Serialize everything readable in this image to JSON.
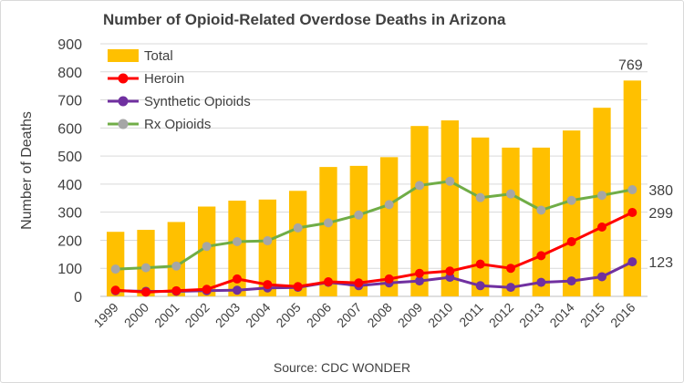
{
  "chart_data": {
    "type": "bar",
    "title": "Number of Opioid-Related Overdose Deaths in Arizona",
    "ylabel": "Number of Deaths",
    "xlabel": "",
    "source": "Source: CDC WONDER",
    "ylim": [
      0,
      900
    ],
    "yticks": [
      "0",
      "100",
      "200",
      "300",
      "400",
      "500",
      "600",
      "700",
      "800",
      "900"
    ],
    "grid": true,
    "legend_position": "top-left",
    "categories": [
      "1999",
      "2000",
      "2001",
      "2002",
      "2003",
      "2004",
      "2005",
      "2006",
      "2007",
      "2008",
      "2009",
      "2010",
      "2011",
      "2012",
      "2013",
      "2014",
      "2015",
      "2016"
    ],
    "bar_series": {
      "name": "Total",
      "color": "#FFC000",
      "values": [
        230,
        237,
        265,
        320,
        341,
        345,
        376,
        461,
        465,
        496,
        607,
        627,
        566,
        530,
        530,
        591,
        672,
        769
      ]
    },
    "line_series": [
      {
        "name": "Heroin",
        "color": "#FF0000",
        "values": [
          22,
          15,
          20,
          25,
          62,
          42,
          35,
          52,
          48,
          62,
          82,
          90,
          115,
          100,
          145,
          195,
          247,
          299
        ]
      },
      {
        "name": "Synthetic Opioids",
        "color": "#7030A0",
        "values": [
          20,
          18,
          18,
          20,
          22,
          30,
          32,
          50,
          38,
          48,
          55,
          68,
          38,
          32,
          50,
          55,
          70,
          123
        ]
      },
      {
        "name": "Rx Opioids",
        "color": "#70AD47",
        "marker_color": "#A6A6A6",
        "values": [
          97,
          102,
          108,
          178,
          195,
          198,
          244,
          262,
          290,
          327,
          395,
          410,
          352,
          365,
          307,
          342,
          360,
          380
        ]
      }
    ],
    "data_labels": [
      {
        "series": "Total",
        "index": 17,
        "text": "769"
      },
      {
        "series": "Rx Opioids",
        "index": 17,
        "text": "380"
      },
      {
        "series": "Heroin",
        "index": 17,
        "text": "299"
      },
      {
        "series": "Synthetic Opioids",
        "index": 17,
        "text": "123"
      }
    ]
  }
}
